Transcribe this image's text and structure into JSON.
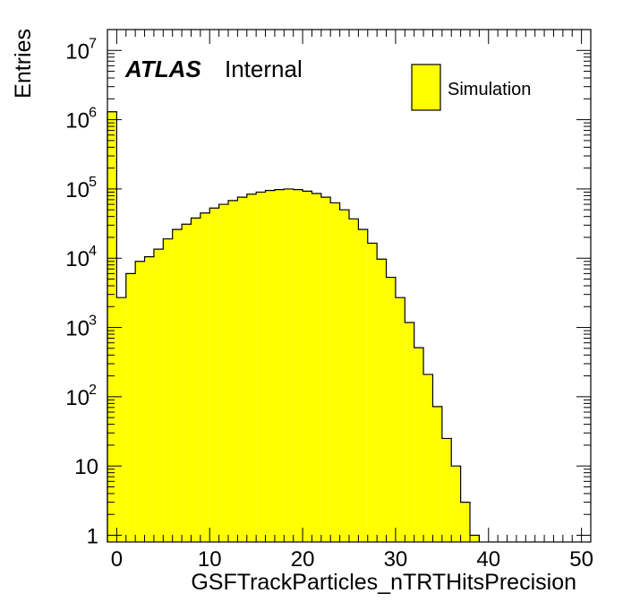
{
  "chart_data": {
    "type": "bar",
    "subtype": "histogram",
    "xlabel": "GSFTrackParticles_nTRTHitsPrecision",
    "ylabel": "Entries",
    "xlim": [
      -1,
      51
    ],
    "ylim": [
      0.8,
      20000000
    ],
    "y_scale": "log",
    "grid": false,
    "legend_position": "top-right",
    "x_ticks": [
      {
        "value": 0,
        "label": "0"
      },
      {
        "value": 10,
        "label": "10"
      },
      {
        "value": 20,
        "label": "20"
      },
      {
        "value": 30,
        "label": "30"
      },
      {
        "value": 40,
        "label": "40"
      },
      {
        "value": 50,
        "label": "50"
      }
    ],
    "y_ticks": [
      {
        "value": 1,
        "base": "1",
        "exp": ""
      },
      {
        "value": 10,
        "base": "10",
        "exp": ""
      },
      {
        "value": 100,
        "base": "10",
        "exp": "2"
      },
      {
        "value": 1000,
        "base": "10",
        "exp": "3"
      },
      {
        "value": 10000,
        "base": "10",
        "exp": "4"
      },
      {
        "value": 100000,
        "base": "10",
        "exp": "5"
      },
      {
        "value": 1000000,
        "base": "10",
        "exp": "6"
      },
      {
        "value": 10000000,
        "base": "10",
        "exp": "7"
      }
    ],
    "bin_edges": [
      -1,
      0,
      1,
      2,
      3,
      4,
      5,
      6,
      7,
      8,
      9,
      10,
      11,
      12,
      13,
      14,
      15,
      16,
      17,
      18,
      19,
      20,
      21,
      22,
      23,
      24,
      25,
      26,
      27,
      28,
      29,
      30,
      31,
      32,
      33,
      34,
      35,
      36,
      37,
      38,
      39,
      40,
      41,
      42,
      43,
      44,
      45,
      46,
      47,
      48,
      49,
      50,
      51
    ],
    "series": [
      {
        "name": "Simulation",
        "color": "#ffff00",
        "edge_color": "#000000",
        "values": [
          1300000,
          2700,
          6000,
          9000,
          10500,
          13500,
          19000,
          26000,
          31000,
          38000,
          45000,
          53000,
          60000,
          68000,
          76000,
          84000,
          90000,
          95000,
          98000,
          100000,
          98000,
          93000,
          86000,
          76000,
          63000,
          50000,
          37000,
          26000,
          16500,
          9700,
          5300,
          2700,
          1180,
          510,
          210,
          72,
          25,
          10,
          3,
          1,
          0,
          0,
          0,
          0,
          0,
          0,
          0,
          0,
          0,
          0,
          0,
          0
        ]
      }
    ]
  },
  "annotations": {
    "experiment": "ATLAS",
    "status": "Internal"
  }
}
